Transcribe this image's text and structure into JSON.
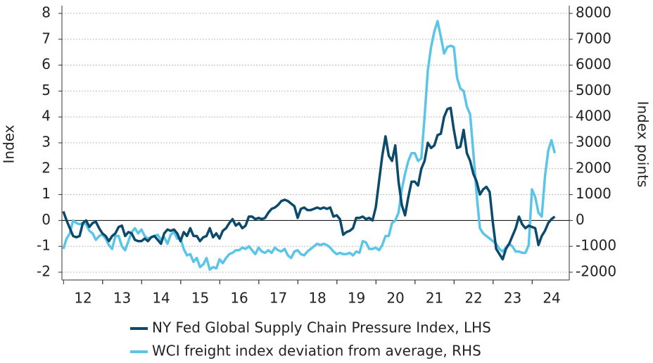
{
  "chart_data": {
    "type": "line",
    "categories": [
      null,
      null,
      null,
      null,
      null,
      null,
      "12",
      null,
      null,
      null,
      null,
      null,
      null,
      null,
      null,
      null,
      null,
      null,
      "13",
      null,
      null,
      null,
      null,
      null,
      null,
      null,
      null,
      null,
      null,
      null,
      "14",
      null,
      null,
      null,
      null,
      null,
      null,
      null,
      null,
      null,
      null,
      null,
      "15",
      null,
      null,
      null,
      null,
      null,
      null,
      null,
      null,
      null,
      null,
      null,
      "16",
      null,
      null,
      null,
      null,
      null,
      null,
      null,
      null,
      null,
      null,
      null,
      "17",
      null,
      null,
      null,
      null,
      null,
      null,
      null,
      null,
      null,
      null,
      null,
      "18",
      null,
      null,
      null,
      null,
      null,
      null,
      null,
      null,
      null,
      null,
      null,
      "19",
      null,
      null,
      null,
      null,
      null,
      null,
      null,
      null,
      null,
      null,
      null,
      "20",
      null,
      null,
      null,
      null,
      null,
      null,
      null,
      null,
      null,
      null,
      null,
      "21",
      null,
      null,
      null,
      null,
      null,
      null,
      null,
      null,
      null,
      null,
      null,
      "22",
      null,
      null,
      null,
      null,
      null,
      null,
      null,
      null,
      null,
      null,
      null,
      "23",
      null,
      null,
      null,
      null,
      null,
      null,
      null,
      null,
      null,
      null,
      null,
      "24",
      null
    ],
    "series": [
      {
        "name": "NY Fed Global Supply Chain Pressure Index, LHS",
        "color": "#0b4a6b",
        "axis": "y",
        "values": [
          0.35,
          0.0,
          -0.3,
          -0.6,
          -0.65,
          -0.6,
          -0.1,
          0.0,
          -0.25,
          -0.1,
          -0.05,
          -0.3,
          -0.5,
          -0.6,
          -0.8,
          -0.6,
          -0.5,
          -0.25,
          -0.2,
          -0.6,
          -0.45,
          -0.5,
          -0.75,
          -0.8,
          -0.8,
          -0.7,
          -0.8,
          -0.65,
          -0.6,
          -0.75,
          -0.9,
          -0.5,
          -0.35,
          -0.4,
          -0.35,
          -0.5,
          -0.8,
          -0.45,
          -0.6,
          -0.3,
          -0.6,
          -0.6,
          -0.8,
          -0.65,
          -0.6,
          -0.3,
          -0.65,
          -0.5,
          -0.7,
          -0.4,
          -0.3,
          -0.1,
          0.05,
          -0.2,
          -0.1,
          -0.3,
          -0.2,
          0.15,
          0.15,
          0.05,
          0.1,
          0.05,
          0.1,
          0.3,
          0.45,
          0.5,
          0.6,
          0.75,
          0.8,
          0.75,
          0.65,
          0.55,
          0.1,
          0.45,
          0.5,
          0.4,
          0.4,
          0.45,
          0.5,
          0.45,
          0.5,
          0.45,
          0.5,
          0.15,
          0.2,
          0.05,
          -0.55,
          -0.45,
          -0.4,
          -0.3,
          0.1,
          0.1,
          0.15,
          0.05,
          0.1,
          0.0,
          0.5,
          1.5,
          2.5,
          3.25,
          2.5,
          2.3,
          2.9,
          1.5,
          0.6,
          0.2,
          0.9,
          1.5,
          1.5,
          1.35,
          2.0,
          2.3,
          3.0,
          2.8,
          2.9,
          3.3,
          3.35,
          4.0,
          4.3,
          4.35,
          3.5,
          2.8,
          2.85,
          3.5,
          2.6,
          2.3,
          1.8,
          1.5,
          1.0,
          1.2,
          1.3,
          1.1,
          -0.1,
          -1.1,
          -1.3,
          -1.5,
          -1.1,
          -0.9,
          -0.6,
          -0.3,
          0.15,
          -0.15,
          -0.3,
          -0.2,
          -0.25,
          -0.3,
          -0.95,
          -0.6,
          -0.4,
          -0.1,
          0.05,
          0.15
        ]
      },
      {
        "name": "WCI freight index deviation from average, RHS",
        "color": "#5bc5e8",
        "axis": "y2",
        "values": [
          -1100,
          -700,
          -500,
          0,
          -100,
          -150,
          -100,
          -150,
          -400,
          -500,
          -750,
          -600,
          -550,
          -700,
          -950,
          -1100,
          -600,
          -600,
          -1000,
          -1150,
          -800,
          -450,
          -300,
          -500,
          -350,
          -600,
          -700,
          -650,
          -600,
          -550,
          -750,
          -650,
          -900,
          -550,
          -450,
          -700,
          -700,
          -1100,
          -1350,
          -1300,
          -1600,
          -1450,
          -1800,
          -1700,
          -1450,
          -1900,
          -1800,
          -1850,
          -1500,
          -1650,
          -1450,
          -1300,
          -1250,
          -1150,
          -1150,
          -1050,
          -1100,
          -1000,
          -1150,
          -1300,
          -1050,
          -1200,
          -1250,
          -1150,
          -1250,
          -1050,
          -1150,
          -1200,
          -1100,
          -1350,
          -1450,
          -1200,
          -1150,
          -1300,
          -1350,
          -1200,
          -1100,
          -1000,
          -900,
          -950,
          -900,
          -950,
          -1050,
          -1200,
          -1300,
          -1250,
          -1300,
          -1300,
          -1250,
          -1350,
          -1200,
          -1250,
          -800,
          -850,
          -1100,
          -1100,
          -1050,
          -1150,
          -950,
          -600,
          -600,
          -100,
          0,
          300,
          1200,
          1800,
          2300,
          2600,
          2600,
          2300,
          2400,
          4000,
          5800,
          6700,
          7300,
          7700,
          7100,
          6450,
          6700,
          6750,
          6700,
          5500,
          5100,
          5000,
          4400,
          4100,
          2600,
          1000,
          -300,
          -500,
          -600,
          -700,
          -800,
          -900,
          -1100,
          -1200,
          -1050,
          -900,
          -1000,
          -1200,
          -1200,
          -1250,
          -1250,
          -950,
          1200,
          900,
          300,
          150,
          1700,
          2700,
          3100,
          2600
        ]
      }
    ],
    "ylabel": "Index",
    "y2label": "Index points",
    "ylim": [
      -2.3,
      8.3
    ],
    "yticks": [
      -2,
      -1,
      0,
      1,
      2,
      3,
      4,
      5,
      6,
      7,
      8
    ],
    "y2lim": [
      -2300,
      8300
    ],
    "y2ticks": [
      -2000,
      -1000,
      0,
      1000,
      2000,
      3000,
      4000,
      5000,
      6000,
      7000,
      8000
    ],
    "grid": true
  }
}
